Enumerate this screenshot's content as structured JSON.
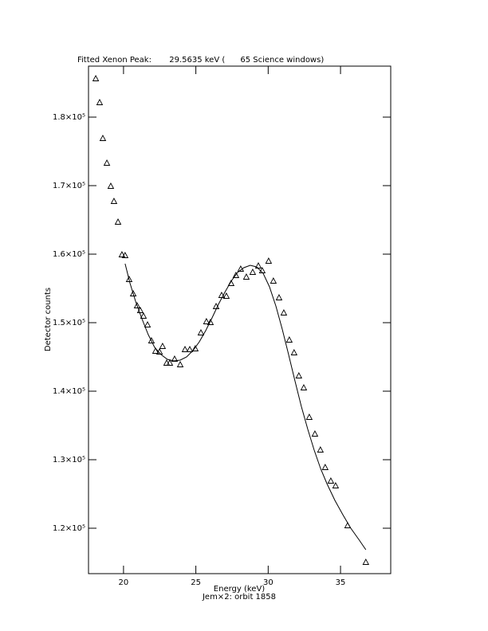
{
  "chart_data": {
    "type": "scatter",
    "title": "Fitted Xenon Peak:       29.5635 keV (      65 Science windows)",
    "xlabel": "Energy (keV)",
    "subtitle": "Jem×2: orbit 1858",
    "ylabel": "Detector counts",
    "xlim": [
      17.58,
      38.47
    ],
    "ylim": [
      113372,
      187442
    ],
    "xticks": [
      20,
      25,
      30,
      35
    ],
    "yticks": [
      {
        "value": 120000,
        "label": "1.2×10⁵"
      },
      {
        "value": 130000,
        "label": "1.3×10⁵"
      },
      {
        "value": 140000,
        "label": "1.4×10⁵"
      },
      {
        "value": 150000,
        "label": "1.5×10⁵"
      },
      {
        "value": 160000,
        "label": "1.6×10⁵"
      },
      {
        "value": 170000,
        "label": "1.7×10⁵"
      },
      {
        "value": 180000,
        "label": "1.8×10⁵"
      }
    ],
    "series": [
      {
        "kind": "marker",
        "color": "#000000",
        "x": [
          18.08,
          18.35,
          18.57,
          18.85,
          19.12,
          19.34,
          19.62,
          19.89,
          20.11,
          20.39,
          20.67,
          20.94,
          21.16,
          21.38,
          21.66,
          21.93,
          22.21,
          22.49,
          22.7,
          22.98,
          23.2,
          23.53,
          23.92,
          24.25,
          24.58,
          24.96,
          25.35,
          25.73,
          26.01,
          26.4,
          26.78,
          27.11,
          27.44,
          27.77,
          28.1,
          28.49,
          28.93,
          29.32,
          29.59,
          30.03,
          30.36,
          30.75,
          31.08,
          31.46,
          31.79,
          32.12,
          32.46,
          32.84,
          33.23,
          33.61,
          33.94,
          34.33,
          34.66,
          35.49,
          36.75
        ],
        "y": [
          185581,
          182093,
          176860,
          173256,
          169884,
          167674,
          164651,
          159884,
          159767,
          156279,
          154186,
          152442,
          151744,
          150930,
          149651,
          147326,
          145814,
          145698,
          146512,
          144070,
          144070,
          144651,
          143837,
          146047,
          146047,
          146163,
          148488,
          150116,
          150000,
          152326,
          153953,
          153837,
          155698,
          156860,
          157791,
          156628,
          157326,
          158256,
          157558,
          158953,
          156047,
          153605,
          151395,
          147442,
          145581,
          142209,
          140465,
          136163,
          133721,
          131395,
          128837,
          126860,
          126163,
          120349,
          115000
        ]
      },
      {
        "kind": "line",
        "color": "#000000",
        "x": [
          20.11,
          20.44,
          20.83,
          21.27,
          21.71,
          22.15,
          22.59,
          23.03,
          23.48,
          23.92,
          24.36,
          24.8,
          25.24,
          25.68,
          26.12,
          26.56,
          27.0,
          27.44,
          27.88,
          28.32,
          28.76,
          29.2,
          29.65,
          30.09,
          30.53,
          30.97,
          31.41,
          31.85,
          32.29,
          32.74,
          33.18,
          33.62,
          34.06,
          34.61,
          35.16,
          35.71,
          36.26,
          36.75
        ],
        "y": [
          158605,
          155814,
          153140,
          150581,
          148256,
          146395,
          145349,
          144651,
          144419,
          144535,
          145000,
          145930,
          147209,
          148837,
          150698,
          152674,
          154419,
          156047,
          157326,
          158023,
          158372,
          158140,
          157209,
          155233,
          152442,
          149070,
          145349,
          141512,
          137791,
          134419,
          131395,
          128721,
          126512,
          124070,
          121977,
          120000,
          118372,
          116860
        ]
      }
    ]
  }
}
